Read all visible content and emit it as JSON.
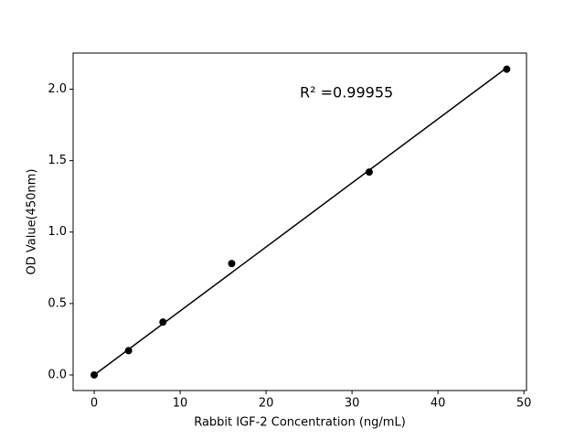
{
  "chart_data": {
    "type": "scatter",
    "xlabel": "Rabbit IGF-2 Concentration (ng/mL)",
    "ylabel": "OD Value(450nm)",
    "annotation": "R² =0.99955",
    "x": [
      0,
      4,
      8,
      16,
      32,
      48
    ],
    "values": [
      0.0,
      0.17,
      0.37,
      0.78,
      1.42,
      2.14
    ],
    "color": "#000000",
    "fit": {
      "x": [
        0,
        48
      ],
      "values": [
        0.0,
        2.15
      ],
      "color": "#000000"
    },
    "xlim": [
      -2.45,
      50.3
    ],
    "ylim": [
      -0.109,
      2.253
    ],
    "xticks": [
      0,
      10,
      20,
      30,
      40,
      50
    ],
    "yticks": [
      {
        "value": 0,
        "label": "0.0"
      },
      0.5,
      {
        "value": 1,
        "label": "1.0"
      },
      1.5,
      {
        "value": 2,
        "label": "2.0"
      }
    ],
    "grid": false
  }
}
